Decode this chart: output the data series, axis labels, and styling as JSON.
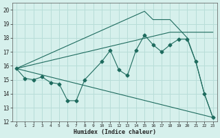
{
  "xlabel": "Humidex (Indice chaleur)",
  "bg_color": "#d6f0ec",
  "grid_color": "#b8ddd8",
  "line_color": "#1e6b5e",
  "xlim": [
    -0.5,
    23.5
  ],
  "ylim": [
    12,
    20.5
  ],
  "xticks": [
    0,
    1,
    2,
    3,
    4,
    5,
    6,
    7,
    8,
    9,
    10,
    11,
    12,
    13,
    14,
    15,
    16,
    17,
    18,
    19,
    20,
    21,
    22,
    23
  ],
  "yticks": [
    12,
    13,
    14,
    15,
    16,
    17,
    18,
    19,
    20
  ],
  "series1_x": [
    0,
    1,
    2,
    3,
    4,
    5,
    6,
    7,
    8,
    10,
    11,
    12,
    13,
    14,
    15,
    16,
    17,
    18,
    19,
    20,
    21,
    22,
    23
  ],
  "series1_y": [
    15.8,
    15.1,
    15.0,
    15.2,
    14.8,
    14.7,
    13.5,
    13.5,
    15.0,
    16.3,
    17.1,
    15.7,
    15.3,
    17.1,
    18.2,
    17.5,
    17.0,
    17.5,
    17.9,
    17.9,
    16.3,
    14.0,
    12.3
  ],
  "series2_x": [
    0,
    15,
    16,
    18,
    20,
    21,
    22,
    23
  ],
  "series2_y": [
    15.8,
    19.9,
    19.3,
    19.3,
    18.0,
    16.3,
    14.0,
    12.3
  ],
  "series3_x": [
    0,
    18,
    23
  ],
  "series3_y": [
    15.8,
    18.4,
    18.4
  ],
  "series4_x": [
    0,
    23
  ],
  "series4_y": [
    15.8,
    12.3
  ]
}
